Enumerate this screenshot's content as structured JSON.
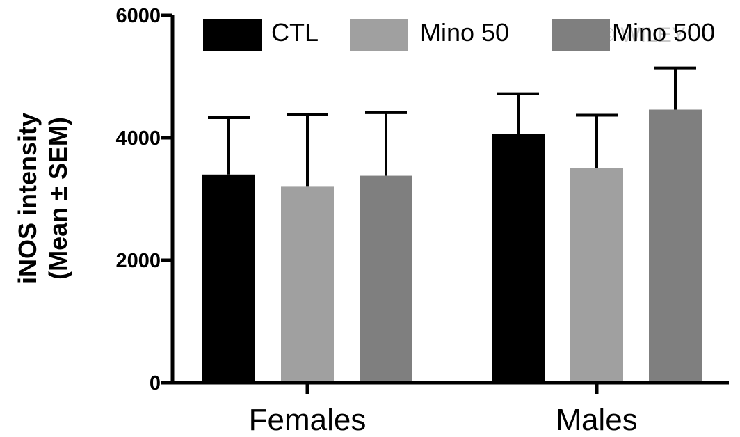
{
  "chart_data": {
    "type": "bar",
    "ylabel_lines": [
      "iNOS intensity",
      "(Mean ± SEM)"
    ],
    "xlabel": "",
    "categories": [
      "Females",
      "Males"
    ],
    "ylim": [
      0,
      6000
    ],
    "yticks": [
      0,
      2000,
      4000,
      6000
    ],
    "ytick_labels": [
      "0",
      "2000",
      "4000",
      "6000"
    ],
    "grid": false,
    "legend_position": "top",
    "series": [
      {
        "name": "CTL",
        "color": "#000000",
        "values": [
          3400,
          4060
        ],
        "errors": [
          930,
          660
        ]
      },
      {
        "name": "Mino 50",
        "color": "#a0a0a0",
        "values": [
          3200,
          3510
        ],
        "errors": [
          1180,
          860
        ]
      },
      {
        "name": "Mino 500",
        "color": "#7f7f7f",
        "values": [
          3380,
          4460
        ],
        "errors": [
          1030,
          680
        ]
      }
    ],
    "watermark": "© WILEY"
  }
}
